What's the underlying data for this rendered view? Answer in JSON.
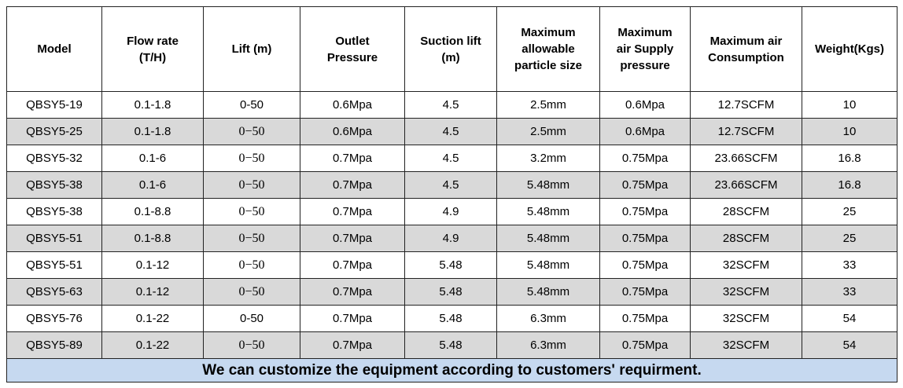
{
  "table": {
    "header": [
      "Model",
      "Flow rate\n(T/H)",
      "Lift (m)",
      "Outlet\nPressure",
      "Suction lift\n(m)",
      "Maximum\nallowable\nparticle size",
      "Maximum\nair Supply\npressure",
      "Maximum air\nConsumption",
      "Weight(Kgs)"
    ],
    "rows": [
      [
        "QBSY5-19",
        "0.1-1.8",
        "0-50",
        "0.6Mpa",
        "4.5",
        "2.5mm",
        "0.6Mpa",
        "12.7SCFM",
        "10"
      ],
      [
        "QBSY5-25",
        "0.1-1.8",
        "0−50",
        "0.6Mpa",
        "4.5",
        "2.5mm",
        "0.6Mpa",
        "12.7SCFM",
        "10"
      ],
      [
        "QBSY5-32",
        "0.1-6",
        "0−50",
        "0.7Mpa",
        "4.5",
        "3.2mm",
        "0.75Mpa",
        "23.66SCFM",
        "16.8"
      ],
      [
        "QBSY5-38",
        "0.1-6",
        "0−50",
        "0.7Mpa",
        "4.5",
        "5.48mm",
        "0.75Mpa",
        "23.66SCFM",
        "16.8"
      ],
      [
        "QBSY5-38",
        "0.1-8.8",
        "0−50",
        "0.7Mpa",
        "4.9",
        "5.48mm",
        "0.75Mpa",
        "28SCFM",
        "25"
      ],
      [
        "QBSY5-51",
        "0.1-8.8",
        "0−50",
        "0.7Mpa",
        "4.9",
        "5.48mm",
        "0.75Mpa",
        "28SCFM",
        "25"
      ],
      [
        "QBSY5-51",
        "0.1-12",
        "0−50",
        "0.7Mpa",
        "5.48",
        "5.48mm",
        "0.75Mpa",
        "32SCFM",
        "33"
      ],
      [
        "QBSY5-63",
        "0.1-12",
        "0−50",
        "0.7Mpa",
        "5.48",
        "5.48mm",
        "0.75Mpa",
        "32SCFM",
        "33"
      ],
      [
        "QBSY5-76",
        "0.1-22",
        "0-50",
        "0.7Mpa",
        "5.48",
        "6.3mm",
        "0.75Mpa",
        "32SCFM",
        "54"
      ],
      [
        "QBSY5-89",
        "0.1-22",
        "0−50",
        "0.7Mpa",
        "5.48",
        "6.3mm",
        "0.75Mpa",
        "32SCFM",
        "54"
      ]
    ],
    "footer": "We can customize the equipment according to customers' requirment."
  }
}
